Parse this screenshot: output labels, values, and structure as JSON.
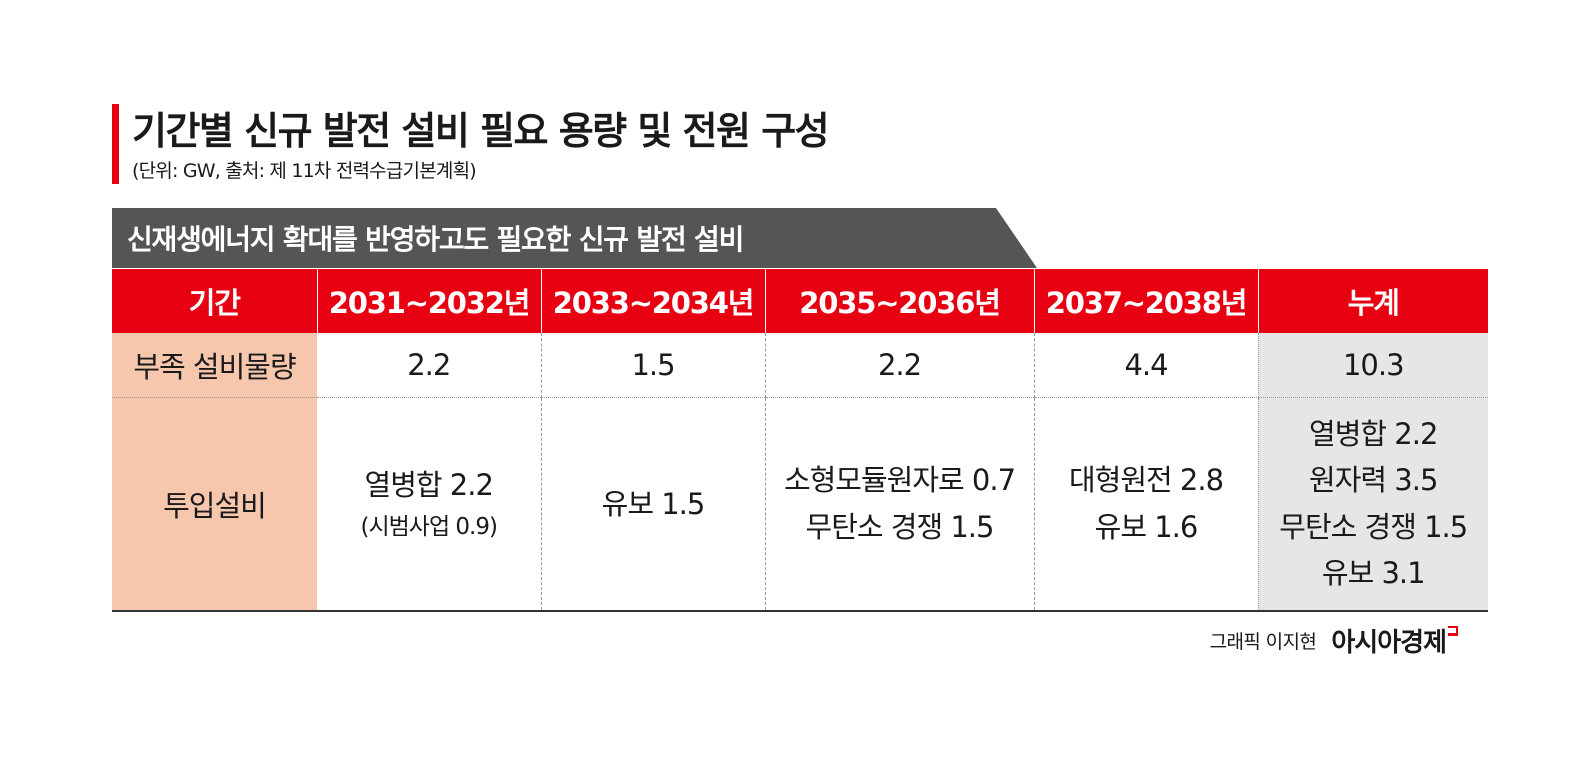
{
  "header": {
    "title": "기간별 신규 발전 설비 필요 용량 및 전원 구성",
    "subtitle": "(단위: GW, 출처: 제 11차 전력수급기본계획)"
  },
  "banner": {
    "text": "신재생에너지 확대를 반영하고도 필요한 신규 발전 설비"
  },
  "table": {
    "columns": [
      "기간",
      "2031~2032년",
      "2033~2034년",
      "2035~2036년",
      "2037~2038년",
      "누계"
    ],
    "shortage_row": {
      "label": "부족 설비물량",
      "values": [
        "2.2",
        "1.5",
        "2.2",
        "4.4",
        "10.3"
      ]
    },
    "investment_row": {
      "label": "투입설비",
      "cells": [
        {
          "lines": [
            "열병합 2.2"
          ],
          "note": "(시범사업 0.9)"
        },
        {
          "lines": [
            "유보 1.5"
          ]
        },
        {
          "lines": [
            "소형모듈원자로 0.7",
            "무탄소 경쟁 1.5"
          ]
        },
        {
          "lines": [
            "대형원전 2.8",
            "유보 1.6"
          ]
        },
        {
          "lines": [
            "열병합 2.2",
            "원자력 3.5",
            "무탄소 경쟁 1.5",
            "유보 3.1"
          ]
        }
      ]
    }
  },
  "footer": {
    "credit": "그래픽 이지현",
    "logo": "아시아경제"
  },
  "colors": {
    "accent": "#e60012",
    "banner": "#555555",
    "label_bg": "#f6c6ad",
    "total_bg": "#e6e6e6"
  }
}
